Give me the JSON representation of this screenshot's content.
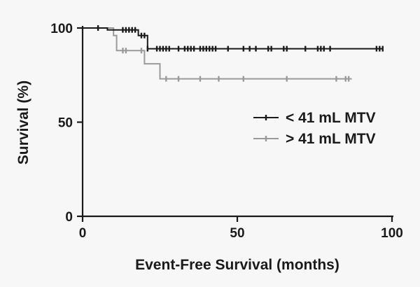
{
  "chart_data": {
    "type": "line",
    "title": "",
    "xlabel": "Event-Free Survival (months)",
    "ylabel": "Survival (%)",
    "xlim": [
      0,
      100
    ],
    "ylim": [
      0,
      100
    ],
    "x_ticks": [
      0,
      50,
      100
    ],
    "y_ticks": [
      0,
      50,
      100
    ],
    "grid": false,
    "legend_position": "right",
    "series": [
      {
        "name": "< 41 mL MTV",
        "color": "#1a1a1a",
        "steps": [
          [
            0,
            100
          ],
          [
            8,
            100
          ],
          [
            8,
            99
          ],
          [
            18,
            99
          ],
          [
            18,
            96
          ],
          [
            21,
            96
          ],
          [
            21,
            89
          ],
          [
            97,
            89
          ]
        ],
        "censored": [
          [
            5,
            100
          ],
          [
            13,
            99
          ],
          [
            14,
            99
          ],
          [
            15,
            99
          ],
          [
            16,
            99
          ],
          [
            17,
            99
          ],
          [
            19,
            96
          ],
          [
            20,
            96
          ],
          [
            21,
            89
          ],
          [
            24,
            89
          ],
          [
            25,
            89
          ],
          [
            26,
            89
          ],
          [
            27,
            89
          ],
          [
            28,
            89
          ],
          [
            31,
            89
          ],
          [
            33,
            89
          ],
          [
            34,
            89
          ],
          [
            35,
            89
          ],
          [
            36,
            89
          ],
          [
            38,
            89
          ],
          [
            39,
            89
          ],
          [
            40,
            89
          ],
          [
            41,
            89
          ],
          [
            42,
            89
          ],
          [
            43,
            89
          ],
          [
            47,
            89
          ],
          [
            52,
            89
          ],
          [
            54,
            89
          ],
          [
            56,
            89
          ],
          [
            60,
            89
          ],
          [
            61,
            89
          ],
          [
            65,
            89
          ],
          [
            66,
            89
          ],
          [
            72,
            89
          ],
          [
            76,
            89
          ],
          [
            77,
            89
          ],
          [
            78,
            89
          ],
          [
            80,
            89
          ],
          [
            95,
            89
          ],
          [
            96,
            89
          ],
          [
            97,
            89
          ]
        ]
      },
      {
        "name": "> 41 mL MTV",
        "color": "#9a9a9a",
        "steps": [
          [
            0,
            100
          ],
          [
            8,
            100
          ],
          [
            10,
            100
          ],
          [
            10,
            96
          ],
          [
            11,
            96
          ],
          [
            11,
            88
          ],
          [
            20,
            88
          ],
          [
            20,
            81
          ],
          [
            25,
            81
          ],
          [
            25,
            73
          ],
          [
            87,
            73
          ]
        ],
        "censored": [
          [
            13,
            88
          ],
          [
            14,
            88
          ],
          [
            19,
            88
          ],
          [
            27,
            73
          ],
          [
            31,
            73
          ],
          [
            38,
            73
          ],
          [
            44,
            73
          ],
          [
            52,
            73
          ],
          [
            66,
            73
          ],
          [
            82,
            73
          ],
          [
            85,
            73
          ],
          [
            86,
            73
          ]
        ]
      }
    ]
  }
}
